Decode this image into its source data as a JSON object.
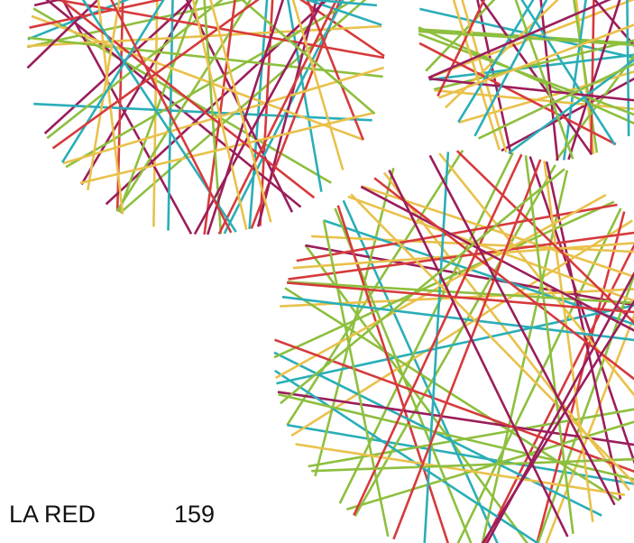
{
  "footer": {
    "section": "LA RED",
    "page_number": "159"
  }
}
